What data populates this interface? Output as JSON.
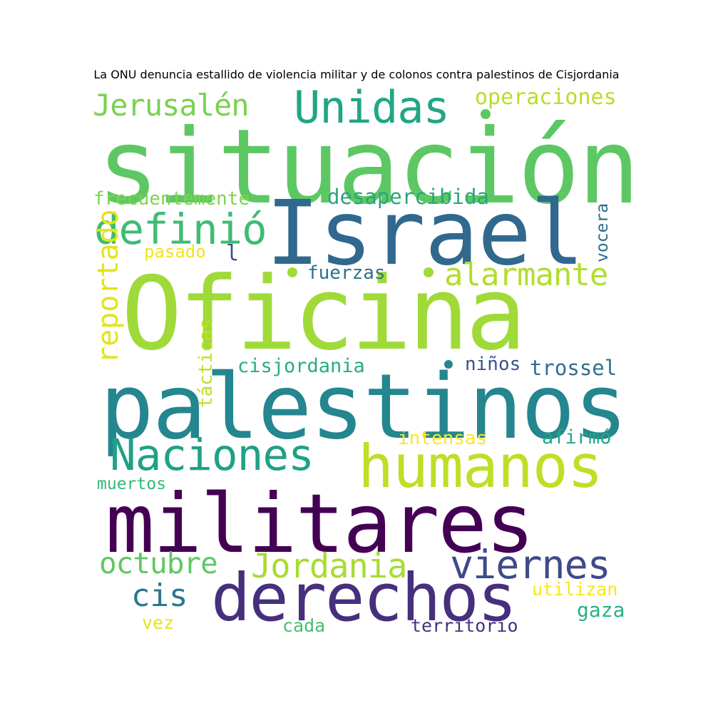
{
  "title": "La ONU denuncia estallido de violencia militar y de colonos contra palestinos de Cisjordania",
  "words": [
    {
      "text": "situación",
      "color": "#5dc863"
    },
    {
      "text": "Israel",
      "color": "#31688e"
    },
    {
      "text": "Oficina",
      "color": "#a0da39"
    },
    {
      "text": "palestinos",
      "color": "#24868e"
    },
    {
      "text": "militares",
      "color": "#440154"
    },
    {
      "text": "humanos",
      "color": "#bddf26"
    },
    {
      "text": "derechos",
      "color": "#472f7d"
    },
    {
      "text": "Naciones",
      "color": "#1fa187"
    },
    {
      "text": "Unidas",
      "color": "#21a685"
    },
    {
      "text": "definió",
      "color": "#3dbc74"
    },
    {
      "text": "viernes",
      "color": "#3e4a89"
    },
    {
      "text": "Jordania",
      "color": "#a8db34"
    },
    {
      "text": "Jerusalén",
      "color": "#7ad151"
    },
    {
      "text": "alarmante",
      "color": "#b2dd2d"
    },
    {
      "text": "octubre",
      "color": "#5ec962"
    },
    {
      "text": "cis",
      "color": "#2a788e"
    },
    {
      "text": "operaciones",
      "color": "#b8de29"
    },
    {
      "text": "desapercibida",
      "color": "#2ea37c"
    },
    {
      "text": "frecuentemente",
      "color": "#7fd34e"
    },
    {
      "text": "pasado",
      "color": "#f1e51d"
    },
    {
      "text": "reportado",
      "color": "#e3e418"
    },
    {
      "text": "vocera",
      "color": "#2f6c8e"
    },
    {
      "text": "l",
      "color": "#3b528b"
    },
    {
      "text": "fuerzas",
      "color": "#2c718e"
    },
    {
      "text": "tácticas",
      "color": "#c0df25"
    },
    {
      "text": "cisjordania",
      "color": "#27ad81"
    },
    {
      "text": "niños",
      "color": "#3b528b"
    },
    {
      "text": "trossel",
      "color": "#2d708e"
    },
    {
      "text": "intensas",
      "color": "#fde725"
    },
    {
      "text": "afirmó",
      "color": "#22a884"
    },
    {
      "text": "muertos",
      "color": "#35b779"
    },
    {
      "text": "utilizan",
      "color": "#f6e620"
    },
    {
      "text": "gaza",
      "color": "#2ab07f"
    },
    {
      "text": "vez",
      "color": "#e5e419"
    },
    {
      "text": "cada",
      "color": "#44bf70"
    },
    {
      "text": "territorio",
      "color": "#46327e"
    }
  ],
  "dots": [
    {
      "color": "#5dc863"
    },
    {
      "color": "#a0da39"
    },
    {
      "color": "#a0da39"
    },
    {
      "color": "#24868e"
    }
  ]
}
